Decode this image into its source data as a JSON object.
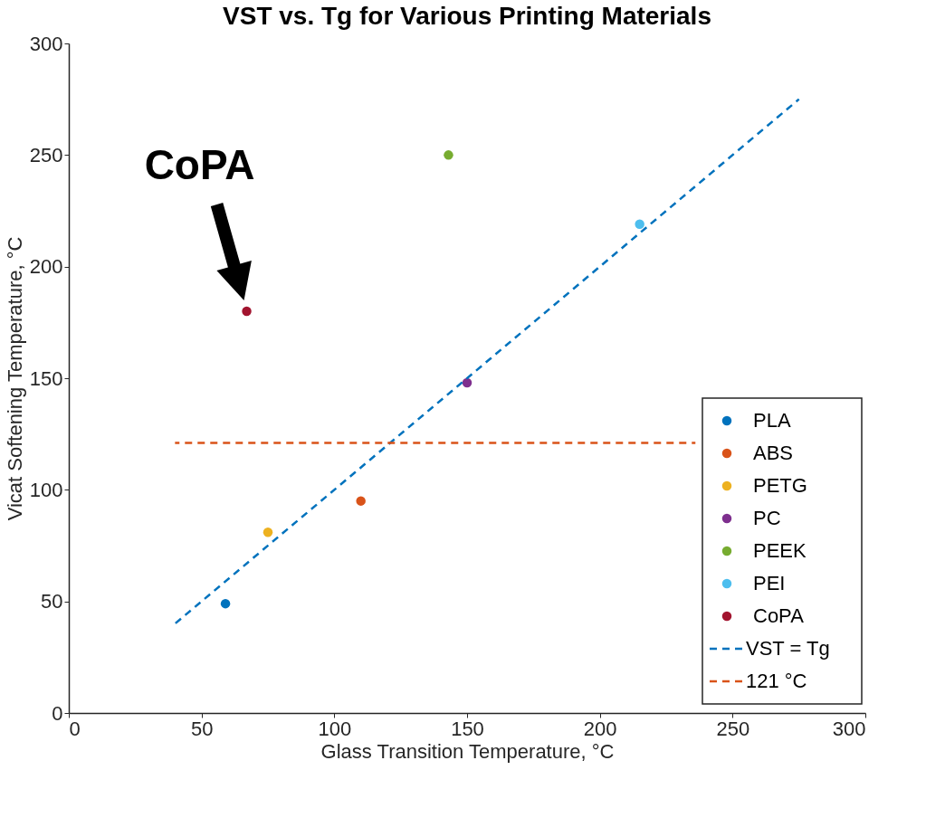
{
  "chart_data": {
    "type": "scatter",
    "title": "VST vs. Tg for Various Printing Materials",
    "xlabel": "Glass Transition Temperature, °C",
    "ylabel": "Vicat Softening Temperature, °C",
    "xlim": [
      0,
      300
    ],
    "ylim": [
      0,
      300
    ],
    "xticks": [
      0,
      50,
      100,
      150,
      200,
      250,
      300
    ],
    "yticks": [
      0,
      50,
      100,
      150,
      200,
      250,
      300
    ],
    "grid": false,
    "legend": "bottom right",
    "marker": "circle",
    "series": [
      {
        "name": "PLA",
        "color": "#0072bd",
        "x": [
          59
        ],
        "values": [
          49
        ]
      },
      {
        "name": "ABS",
        "color": "#d95319",
        "x": [
          110
        ],
        "values": [
          95
        ]
      },
      {
        "name": "PETG",
        "color": "#edb120",
        "x": [
          75
        ],
        "values": [
          81
        ]
      },
      {
        "name": "PC",
        "color": "#7e2f8e",
        "x": [
          150
        ],
        "values": [
          148
        ]
      },
      {
        "name": "PEEK",
        "color": "#77ac30",
        "x": [
          143
        ],
        "values": [
          250
        ]
      },
      {
        "name": "PEI",
        "color": "#4dbeee",
        "x": [
          215
        ],
        "values": [
          219
        ]
      },
      {
        "name": "CoPA",
        "color": "#a2142f",
        "x": [
          67
        ],
        "values": [
          180
        ]
      },
      {
        "name": "VST = Tg",
        "type": "line",
        "line_style": "dashed",
        "marker": "none",
        "color": "#0072bd",
        "x": [
          40,
          275
        ],
        "values": [
          40,
          275
        ]
      },
      {
        "name": "121 °C",
        "type": "line",
        "line_style": "dashed",
        "marker": "none",
        "color": "#d95319",
        "x": [
          40,
          236
        ],
        "values": [
          121,
          121
        ]
      }
    ],
    "annotations": [
      {
        "text": "CoPA",
        "x": 67,
        "y": 180
      }
    ]
  }
}
